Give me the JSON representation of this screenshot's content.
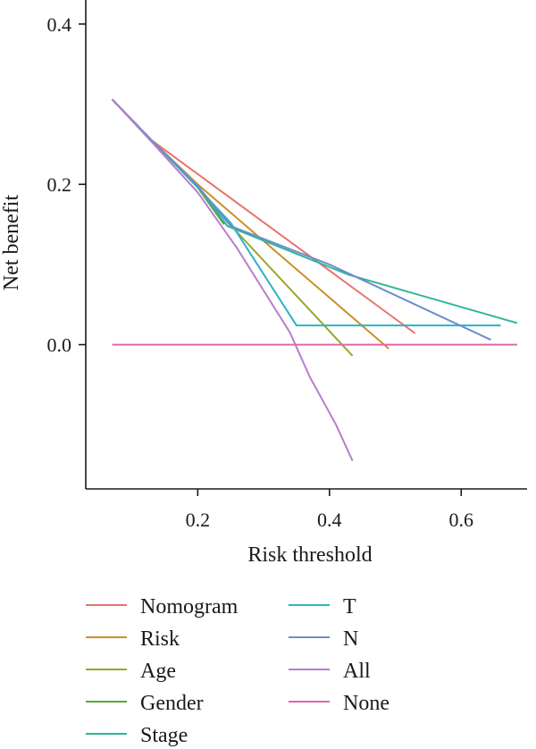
{
  "chart_data": {
    "type": "line",
    "xlabel": "Risk threshold",
    "ylabel": "Net benefit",
    "xlim": [
      0.03,
      0.7
    ],
    "ylim": [
      -0.18,
      0.43
    ],
    "xticks": [
      0.2,
      0.4,
      0.6
    ],
    "yticks": [
      0.0,
      0.2,
      0.4
    ],
    "xtick_labels": [
      "0.2",
      "0.4",
      "0.6"
    ],
    "ytick_labels": [
      "0.0",
      "0.2",
      "0.4"
    ],
    "grid": false,
    "legend_placement": "bottom",
    "series": [
      {
        "name": "Nomogram",
        "color": "#E8736C",
        "points": [
          [
            0.07,
            0.306
          ],
          [
            0.13,
            0.255
          ],
          [
            0.53,
            0.014
          ]
        ]
      },
      {
        "name": "Risk",
        "color": "#CD9027",
        "points": [
          [
            0.07,
            0.306
          ],
          [
            0.13,
            0.255
          ],
          [
            0.2,
            0.2
          ],
          [
            0.49,
            -0.005
          ]
        ]
      },
      {
        "name": "Age",
        "color": "#9AA526",
        "points": [
          [
            0.07,
            0.306
          ],
          [
            0.13,
            0.255
          ],
          [
            0.2,
            0.197
          ],
          [
            0.26,
            0.14
          ],
          [
            0.435,
            -0.014
          ]
        ]
      },
      {
        "name": "Gender",
        "color": "#54AA3F",
        "points": [
          [
            0.07,
            0.306
          ],
          [
            0.13,
            0.255
          ],
          [
            0.2,
            0.196
          ],
          [
            0.24,
            0.15
          ]
        ]
      },
      {
        "name": "Stage",
        "color": "#2EB59A",
        "points": [
          [
            0.07,
            0.306
          ],
          [
            0.13,
            0.255
          ],
          [
            0.2,
            0.198
          ],
          [
            0.245,
            0.148
          ],
          [
            0.43,
            0.087
          ],
          [
            0.685,
            0.027
          ]
        ]
      },
      {
        "name": "T",
        "color": "#2BB3C8",
        "points": [
          [
            0.07,
            0.306
          ],
          [
            0.13,
            0.255
          ],
          [
            0.2,
            0.196
          ],
          [
            0.25,
            0.152
          ],
          [
            0.35,
            0.024
          ],
          [
            0.66,
            0.024
          ]
        ]
      },
      {
        "name": "N",
        "color": "#6C8ECC",
        "points": [
          [
            0.07,
            0.306
          ],
          [
            0.13,
            0.255
          ],
          [
            0.2,
            0.198
          ],
          [
            0.25,
            0.148
          ],
          [
            0.4,
            0.1
          ],
          [
            0.645,
            0.006
          ]
        ]
      },
      {
        "name": "All",
        "color": "#B67ECB",
        "points": [
          [
            0.07,
            0.306
          ],
          [
            0.13,
            0.253
          ],
          [
            0.2,
            0.19
          ],
          [
            0.26,
            0.12
          ],
          [
            0.34,
            0.015
          ],
          [
            0.37,
            -0.04
          ],
          [
            0.41,
            -0.1
          ],
          [
            0.435,
            -0.145
          ]
        ]
      },
      {
        "name": "None",
        "color": "#E066A8",
        "points": [
          [
            0.07,
            0.0
          ],
          [
            0.685,
            0.0
          ]
        ]
      }
    ],
    "legend_columns": [
      [
        "Nomogram",
        "Risk",
        "Age",
        "Gender",
        "Stage"
      ],
      [
        "T",
        "N",
        "All",
        "None"
      ]
    ]
  }
}
